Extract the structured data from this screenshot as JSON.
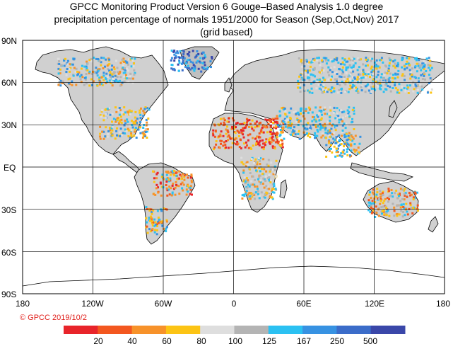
{
  "title": {
    "line1": "GPCC Monitoring Product Version 6 Gouge–Based Analysis 1.0 degree",
    "line2": "precipitation percentage of normals 1951/2000 for Season (Sep,Oct,Nov) 2017",
    "line3": "(grid based)"
  },
  "axes": {
    "lat_labels": [
      "90N",
      "60N",
      "30N",
      "EQ",
      "30S",
      "60S",
      "90S"
    ],
    "lon_labels": [
      "180",
      "120W",
      "60W",
      "0",
      "60E",
      "120E",
      "180"
    ]
  },
  "copyright": "© GPCC 2019/10/2",
  "legend": {
    "colors": [
      "#e8242a",
      "#f3571f",
      "#f7922a",
      "#fcc415",
      "#dedede",
      "#b4b4b4",
      "#2bc1f2",
      "#3792e2",
      "#3b6cc9",
      "#3a47a9"
    ],
    "labels": [
      "20",
      "40",
      "60",
      "80",
      "100",
      "125",
      "167",
      "250",
      "500"
    ]
  },
  "colors": {
    "ocean": "#ffffff",
    "coast": "#000000",
    "grid": "#000000"
  }
}
